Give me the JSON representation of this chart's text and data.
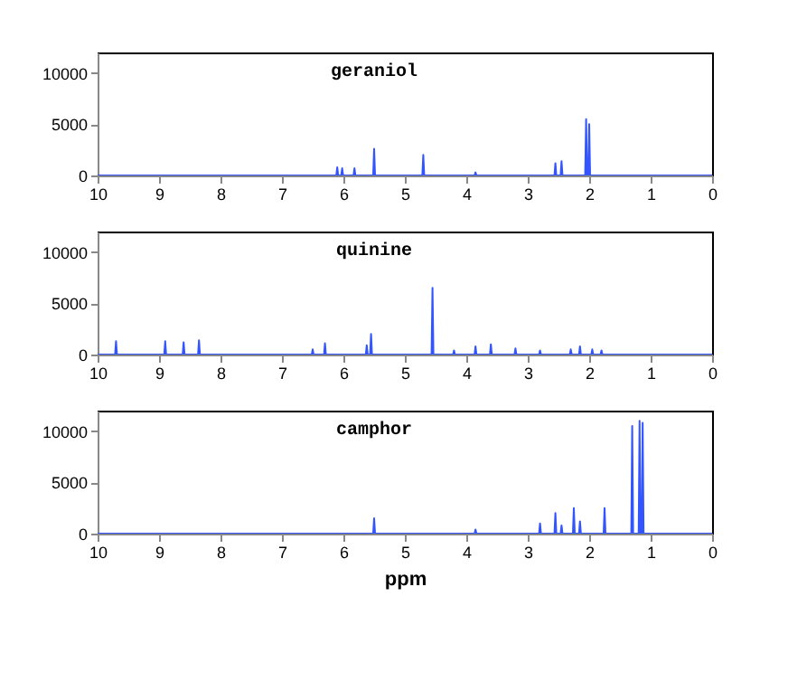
{
  "chart_data": [
    {
      "type": "line",
      "title": "geraniol",
      "xlim": [
        10,
        0
      ],
      "xticks": [
        10,
        9,
        8,
        7,
        6,
        5,
        4,
        3,
        2,
        1,
        0
      ],
      "ylim": [
        0,
        12000
      ],
      "yticks": [
        0,
        5000,
        10000
      ],
      "grid": false,
      "series": [
        {
          "color": "#3355ff",
          "x": [
            10,
            6.115,
            6.1,
            6.085,
            6.035,
            6.02,
            6.005,
            5.835,
            5.82,
            5.805,
            5.515,
            5.5,
            5.485,
            4.715,
            4.7,
            4.685,
            3.865,
            3.85,
            3.835,
            2.565,
            2.55,
            2.535,
            2.465,
            2.45,
            2.435,
            2.065,
            2.05,
            2.035,
            2.015,
            2.0,
            1.985,
            0
          ],
          "values": [
            0,
            0,
            800,
            0,
            0,
            700,
            0,
            0,
            700,
            0,
            0,
            2600,
            0,
            0,
            2000,
            0,
            0,
            300,
            0,
            0,
            1200,
            0,
            0,
            1400,
            0,
            0,
            5500,
            0,
            0,
            5000,
            0,
            0
          ]
        }
      ]
    },
    {
      "type": "line",
      "title": "quinine",
      "xlim": [
        10,
        0
      ],
      "xticks": [
        10,
        9,
        8,
        7,
        6,
        5,
        4,
        3,
        2,
        1,
        0
      ],
      "ylim": [
        0,
        12000
      ],
      "yticks": [
        0,
        5000,
        10000
      ],
      "grid": false,
      "series": [
        {
          "color": "#3355ff",
          "x": [
            10,
            9.715,
            9.7,
            9.685,
            8.915,
            8.9,
            8.885,
            8.615,
            8.6,
            8.585,
            8.365,
            8.35,
            8.335,
            6.515,
            6.5,
            6.485,
            6.315,
            6.3,
            6.285,
            5.635,
            5.62,
            5.605,
            5.565,
            5.55,
            5.535,
            4.565,
            4.55,
            4.535,
            4.215,
            4.2,
            4.185,
            3.865,
            3.85,
            3.835,
            3.615,
            3.6,
            3.585,
            3.215,
            3.2,
            3.185,
            2.815,
            2.8,
            2.785,
            2.315,
            2.3,
            2.285,
            2.165,
            2.15,
            2.135,
            1.965,
            1.95,
            1.935,
            1.815,
            1.8,
            1.785,
            0
          ],
          "values": [
            0,
            0,
            1300,
            0,
            0,
            1300,
            0,
            0,
            1200,
            0,
            0,
            1400,
            0,
            0,
            500,
            0,
            0,
            1100,
            0,
            0,
            900,
            0,
            0,
            2000,
            0,
            0,
            6500,
            0,
            0,
            400,
            0,
            0,
            800,
            0,
            0,
            1000,
            0,
            0,
            600,
            0,
            0,
            400,
            0,
            0,
            500,
            0,
            0,
            800,
            0,
            0,
            500,
            0,
            0,
            400,
            0,
            0
          ]
        }
      ]
    },
    {
      "type": "line",
      "title": "camphor",
      "xlabel": "ppm",
      "xlim": [
        10,
        0
      ],
      "xticks": [
        10,
        9,
        8,
        7,
        6,
        5,
        4,
        3,
        2,
        1,
        0
      ],
      "ylim": [
        0,
        12000
      ],
      "yticks": [
        0,
        5000,
        10000
      ],
      "grid": false,
      "series": [
        {
          "color": "#3355ff",
          "x": [
            10,
            5.515,
            5.5,
            5.485,
            3.865,
            3.85,
            3.835,
            2.815,
            2.8,
            2.785,
            2.565,
            2.55,
            2.535,
            2.465,
            2.45,
            2.435,
            2.265,
            2.25,
            2.235,
            2.165,
            2.15,
            2.135,
            1.765,
            1.75,
            1.735,
            1.315,
            1.3,
            1.285,
            1.195,
            1.18,
            1.165,
            1.145,
            1.13,
            1.115,
            0
          ],
          "values": [
            0,
            0,
            1500,
            0,
            0,
            400,
            0,
            0,
            1000,
            0,
            0,
            2000,
            0,
            0,
            800,
            0,
            0,
            2500,
            0,
            0,
            1200,
            0,
            0,
            2500,
            0,
            0,
            10500,
            0,
            0,
            11000,
            0,
            0,
            10800,
            0,
            0
          ]
        }
      ]
    }
  ]
}
